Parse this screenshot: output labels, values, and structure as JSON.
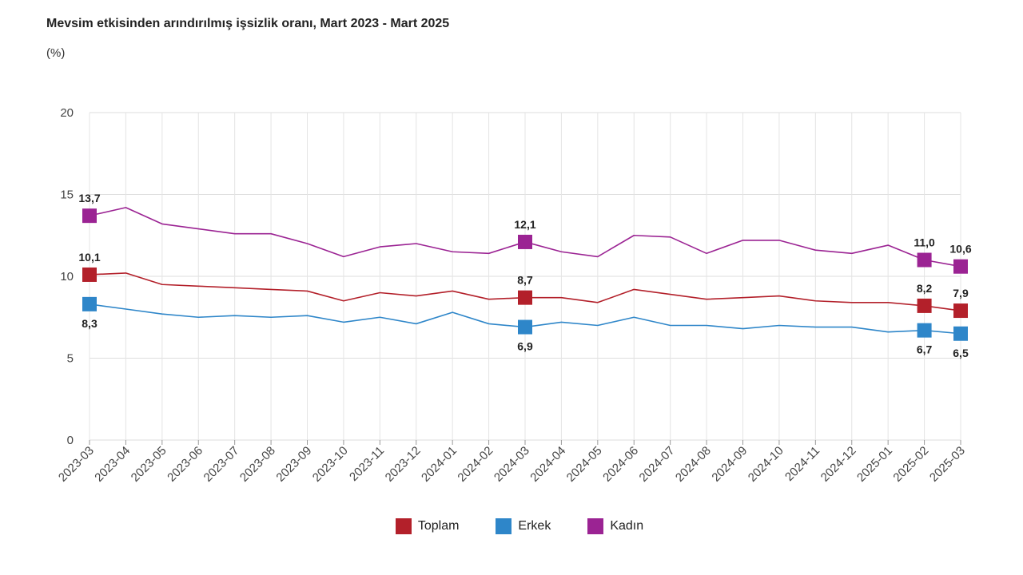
{
  "chart_data": {
    "type": "line",
    "title": "Mevsim etkisinden arındırılmış işsizlik oranı, Mart 2023 - Mart 2025",
    "unit_label": "(%)",
    "categories": [
      "2023-03",
      "2023-04",
      "2023-05",
      "2023-06",
      "2023-07",
      "2023-08",
      "2023-09",
      "2023-10",
      "2023-11",
      "2023-12",
      "2024-01",
      "2024-02",
      "2024-03",
      "2024-04",
      "2024-05",
      "2024-06",
      "2024-07",
      "2024-08",
      "2024-09",
      "2024-10",
      "2024-11",
      "2024-12",
      "2025-01",
      "2025-02",
      "2025-03"
    ],
    "ylim": [
      0,
      20
    ],
    "yticks": [
      0,
      5,
      10,
      15,
      20
    ],
    "grid": true,
    "legend_position": "bottom-center",
    "marker_indices": [
      0,
      12,
      23,
      24
    ],
    "series": [
      {
        "name": "Toplam",
        "color": "#b3202a",
        "values": [
          10.1,
          10.2,
          9.5,
          9.4,
          9.3,
          9.2,
          9.1,
          8.5,
          9.0,
          8.8,
          9.1,
          8.6,
          8.7,
          8.7,
          8.4,
          9.2,
          8.9,
          8.6,
          8.7,
          8.8,
          8.5,
          8.4,
          8.4,
          8.2,
          7.9
        ],
        "labels": [
          "10,1",
          "8,7",
          "8,2",
          "7,9"
        ],
        "label_side": "above"
      },
      {
        "name": "Erkek",
        "color": "#2e86c9",
        "values": [
          8.3,
          8.0,
          7.7,
          7.5,
          7.6,
          7.5,
          7.6,
          7.2,
          7.5,
          7.1,
          7.8,
          7.1,
          6.9,
          7.2,
          7.0,
          7.5,
          7.0,
          7.0,
          6.8,
          7.0,
          6.9,
          6.9,
          6.6,
          6.7,
          6.5
        ],
        "labels": [
          "8,3",
          "6,9",
          "6,7",
          "6,5"
        ],
        "label_side": "below"
      },
      {
        "name": "Kadın",
        "color": "#9b2393",
        "values": [
          13.7,
          14.2,
          13.2,
          12.9,
          12.6,
          12.6,
          12.0,
          11.2,
          11.8,
          12.0,
          11.5,
          11.4,
          12.1,
          11.5,
          11.2,
          12.5,
          12.4,
          11.4,
          12.2,
          12.2,
          11.6,
          11.4,
          11.9,
          11.0,
          10.6
        ],
        "labels": [
          "13,7",
          "12,1",
          "11,0",
          "10,6"
        ],
        "label_side": "above"
      }
    ]
  }
}
